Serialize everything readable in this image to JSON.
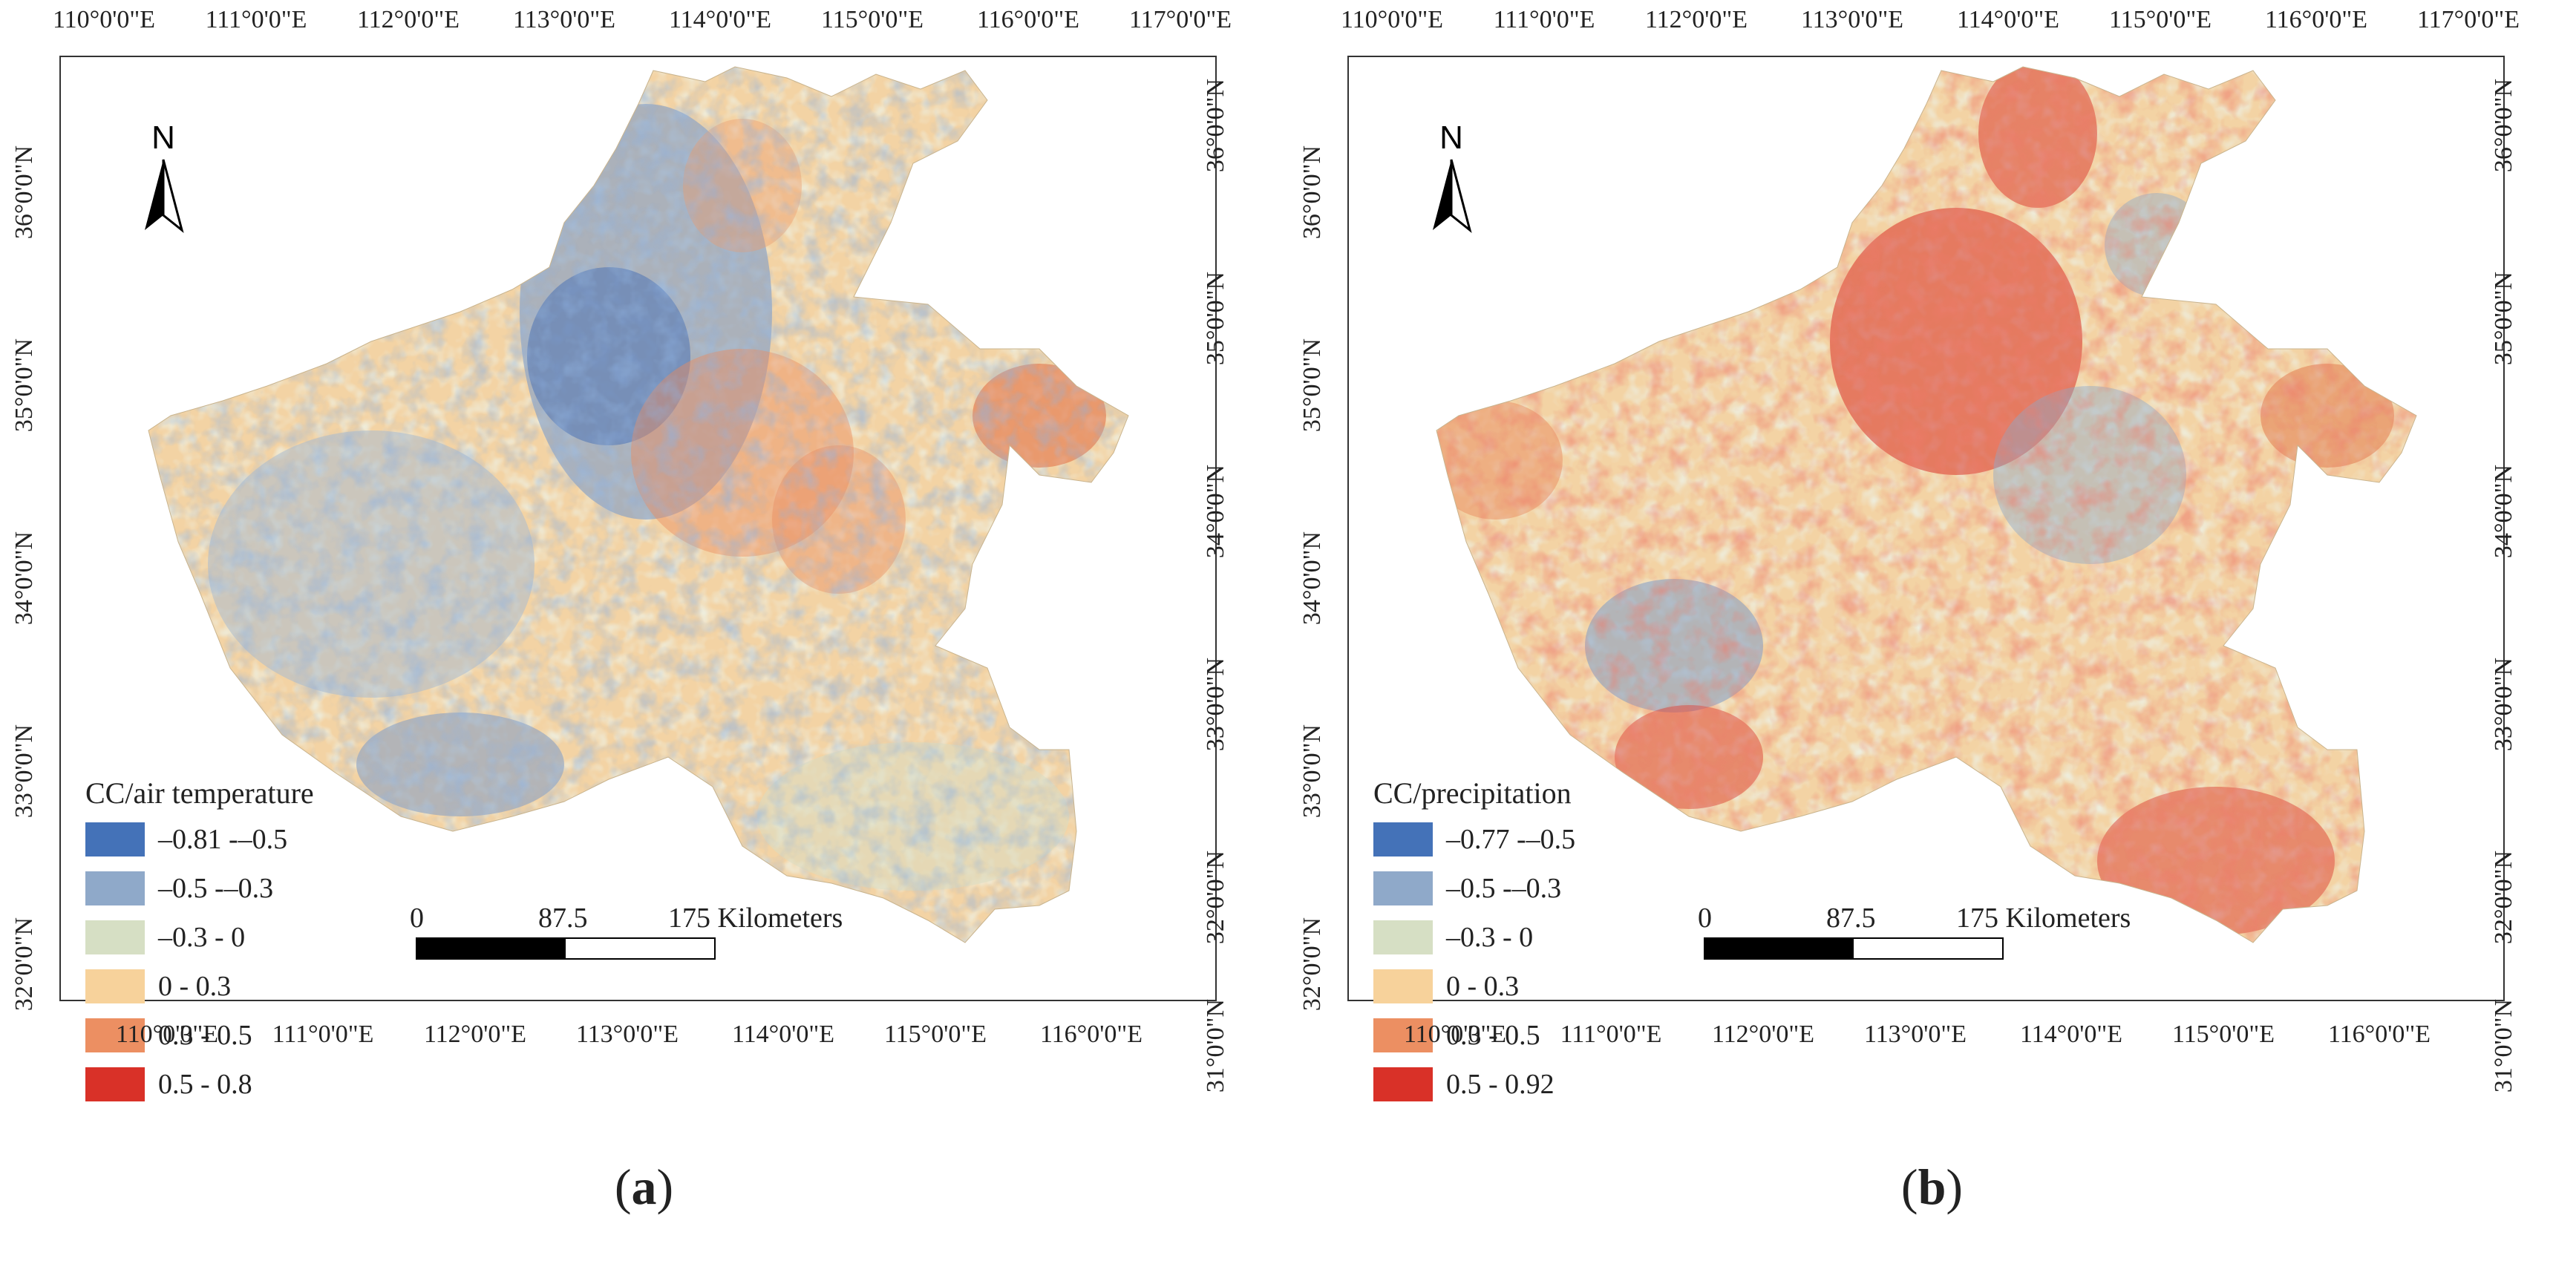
{
  "panels": [
    {
      "caption": "a",
      "legend": {
        "title": "CC/air temperature",
        "items": [
          {
            "label": "–0.81 -–0.5",
            "color": "#4472b8"
          },
          {
            "label": "–0.5 -–0.3",
            "color": "#8fa9c9"
          },
          {
            "label": "–0.3 - 0",
            "color": "#d6dfc4"
          },
          {
            "label": "0 - 0.3",
            "color": "#f7d29b"
          },
          {
            "label": "0.3 - 0.5",
            "color": "#ec8f62"
          },
          {
            "label": "0.5 - 0.8",
            "color": "#d93128"
          }
        ]
      }
    },
    {
      "caption": "b",
      "legend": {
        "title": "CC/precipitation",
        "items": [
          {
            "label": "–0.77 -–0.5",
            "color": "#4472b8"
          },
          {
            "label": "–0.5 -–0.3",
            "color": "#8fa9c9"
          },
          {
            "label": "–0.3 - 0",
            "color": "#d6dfc4"
          },
          {
            "label": "0 - 0.3",
            "color": "#f7d29b"
          },
          {
            "label": "0.3 - 0.5",
            "color": "#ec8f62"
          },
          {
            "label": "0.5 - 0.92",
            "color": "#d93128"
          }
        ]
      }
    }
  ],
  "axes": {
    "top_lon": [
      "110°0'0\"E",
      "111°0'0\"E",
      "112°0'0\"E",
      "113°0'0\"E",
      "114°0'0\"E",
      "115°0'0\"E",
      "116°0'0\"E",
      "117°0'0\"E"
    ],
    "bottom_lon": [
      "110°0'0\"E",
      "111°0'0\"E",
      "112°0'0\"E",
      "113°0'0\"E",
      "114°0'0\"E",
      "115°0'0\"E",
      "116°0'0\"E"
    ],
    "left_lat": [
      "36°0'0\"N",
      "35°0'0\"N",
      "34°0'0\"N",
      "33°0'0\"N",
      "32°0'0\"N"
    ],
    "right_lat": [
      "36°0'0\"N",
      "35°0'0\"N",
      "34°0'0\"N",
      "33°0'0\"N",
      "32°0'0\"N",
      "31°0'0\"N"
    ]
  },
  "north_arrow": {
    "label": "N"
  },
  "scalebar": {
    "labels": [
      "0",
      "87.5",
      "175 Kilometers"
    ]
  },
  "colors": {
    "frame": "#333333",
    "region_base": "#f2d6a8"
  }
}
